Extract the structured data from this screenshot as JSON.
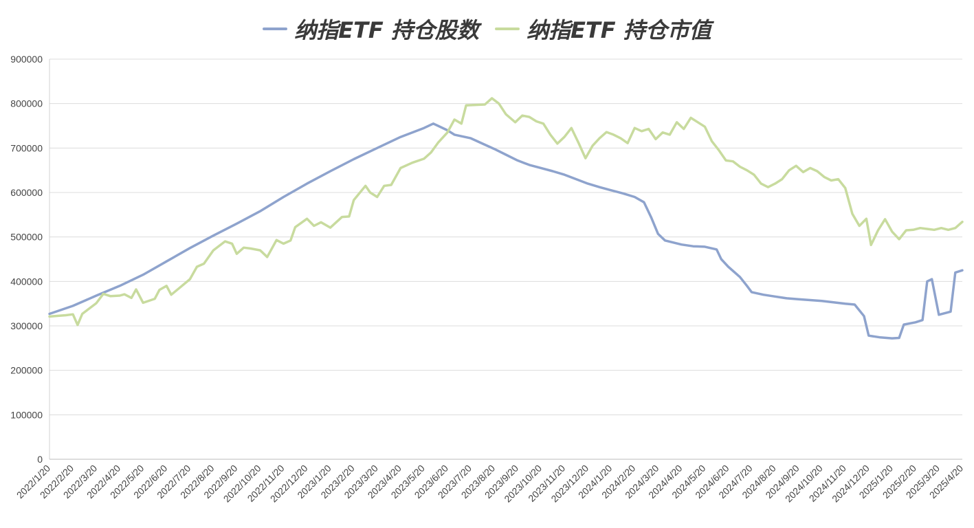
{
  "chart_data": {
    "type": "line",
    "title": "",
    "xlabel": "",
    "ylabel": "",
    "ylim": [
      0,
      900000
    ],
    "y_ticks": [
      "0",
      "100000",
      "200000",
      "300000",
      "400000",
      "500000",
      "600000",
      "700000",
      "800000",
      "900000"
    ],
    "x_tick_labels": [
      "2022/1/20",
      "2022/2/20",
      "2022/3/20",
      "2022/4/20",
      "2022/5/20",
      "2022/6/20",
      "2022/7/20",
      "2022/8/20",
      "2022/9/20",
      "2022/10/20",
      "2022/11/20",
      "2022/12/20",
      "2023/1/20",
      "2023/2/20",
      "2023/3/20",
      "2023/4/20",
      "2023/5/20",
      "2023/6/20",
      "2023/7/20",
      "2023/8/20",
      "2023/9/20",
      "2023/10/20",
      "2023/11/20",
      "2023/12/20",
      "2024/1/20",
      "2024/2/20",
      "2024/3/20",
      "2024/4/20",
      "2024/5/20",
      "2024/6/20",
      "2024/7/20",
      "2024/8/20",
      "2024/9/20",
      "2024/10/20",
      "2024/11/20",
      "2024/12/20",
      "2025/1/20",
      "2025/2/20",
      "2025/3/20",
      "2025/4/20"
    ],
    "grid": true,
    "legend_position": "top",
    "series": [
      {
        "name": "纳指ETF 持仓股数",
        "color": "#8EA3CD",
        "points": [
          [
            0,
            327000
          ],
          [
            1,
            345000
          ],
          [
            2,
            368000
          ],
          [
            3,
            390000
          ],
          [
            4,
            415000
          ],
          [
            5,
            445000
          ],
          [
            6,
            475000
          ],
          [
            7,
            503000
          ],
          [
            8,
            530000
          ],
          [
            9,
            558000
          ],
          [
            10,
            590000
          ],
          [
            11,
            620000
          ],
          [
            12,
            648000
          ],
          [
            13,
            675000
          ],
          [
            14,
            700000
          ],
          [
            15,
            725000
          ],
          [
            16,
            745000
          ],
          [
            16.4,
            755000
          ],
          [
            17,
            740000
          ],
          [
            17.3,
            730000
          ],
          [
            18,
            722000
          ],
          [
            18.5,
            710000
          ],
          [
            19,
            698000
          ],
          [
            19.5,
            685000
          ],
          [
            20,
            672000
          ],
          [
            20.5,
            662000
          ],
          [
            21,
            655000
          ],
          [
            21.5,
            648000
          ],
          [
            22,
            640000
          ],
          [
            22.5,
            630000
          ],
          [
            23,
            620000
          ],
          [
            23.5,
            612000
          ],
          [
            24,
            605000
          ],
          [
            24.5,
            598000
          ],
          [
            25,
            590000
          ],
          [
            25.4,
            578000
          ],
          [
            25.7,
            545000
          ],
          [
            26,
            507000
          ],
          [
            26.3,
            492000
          ],
          [
            27,
            483000
          ],
          [
            27.5,
            479000
          ],
          [
            28,
            478000
          ],
          [
            28.5,
            472000
          ],
          [
            28.7,
            450000
          ],
          [
            29,
            433000
          ],
          [
            29.5,
            410000
          ],
          [
            29.8,
            390000
          ],
          [
            30,
            376000
          ],
          [
            30.5,
            370000
          ],
          [
            31,
            366000
          ],
          [
            31.5,
            362000
          ],
          [
            32,
            360000
          ],
          [
            32.5,
            358000
          ],
          [
            33,
            356000
          ],
          [
            33.5,
            353000
          ],
          [
            34,
            350000
          ],
          [
            34.4,
            348000
          ],
          [
            34.8,
            322000
          ],
          [
            35,
            278000
          ],
          [
            35.5,
            274000
          ],
          [
            36,
            272000
          ],
          [
            36.3,
            273000
          ],
          [
            36.5,
            303000
          ],
          [
            37,
            308000
          ],
          [
            37.3,
            313000
          ],
          [
            37.5,
            400000
          ],
          [
            37.7,
            405000
          ],
          [
            38,
            325000
          ],
          [
            38.5,
            332000
          ],
          [
            38.7,
            420000
          ],
          [
            39,
            425000
          ]
        ]
      },
      {
        "name": "纳指ETF 持仓市值",
        "color": "#C8DB9E",
        "points": [
          [
            0,
            321000
          ],
          [
            0.7,
            324000
          ],
          [
            1,
            326000
          ],
          [
            1.2,
            302000
          ],
          [
            1.4,
            327000
          ],
          [
            2,
            351000
          ],
          [
            2.3,
            372000
          ],
          [
            2.6,
            367000
          ],
          [
            3,
            368000
          ],
          [
            3.2,
            371000
          ],
          [
            3.5,
            363000
          ],
          [
            3.7,
            382000
          ],
          [
            4,
            352000
          ],
          [
            4.5,
            361000
          ],
          [
            4.7,
            381000
          ],
          [
            5,
            390000
          ],
          [
            5.2,
            370000
          ],
          [
            5.5,
            383000
          ],
          [
            6,
            405000
          ],
          [
            6.3,
            433000
          ],
          [
            6.6,
            440000
          ],
          [
            7,
            470000
          ],
          [
            7.5,
            490000
          ],
          [
            7.8,
            485000
          ],
          [
            8,
            462000
          ],
          [
            8.3,
            476000
          ],
          [
            8.6,
            474000
          ],
          [
            9,
            470000
          ],
          [
            9.3,
            455000
          ],
          [
            9.7,
            493000
          ],
          [
            10,
            485000
          ],
          [
            10.3,
            492000
          ],
          [
            10.5,
            522000
          ],
          [
            11,
            541000
          ],
          [
            11.3,
            525000
          ],
          [
            11.6,
            533000
          ],
          [
            12,
            521000
          ],
          [
            12.5,
            545000
          ],
          [
            12.8,
            546000
          ],
          [
            13,
            583000
          ],
          [
            13.5,
            615000
          ],
          [
            13.7,
            600000
          ],
          [
            14,
            590000
          ],
          [
            14.3,
            615000
          ],
          [
            14.6,
            617000
          ],
          [
            15,
            655000
          ],
          [
            15.5,
            667000
          ],
          [
            16,
            676000
          ],
          [
            16.3,
            690000
          ],
          [
            16.6,
            712000
          ],
          [
            17,
            735000
          ],
          [
            17.3,
            764000
          ],
          [
            17.6,
            755000
          ],
          [
            17.8,
            796000
          ],
          [
            18.2,
            797000
          ],
          [
            18.6,
            798000
          ],
          [
            18.9,
            812000
          ],
          [
            19.2,
            800000
          ],
          [
            19.5,
            776000
          ],
          [
            19.9,
            758000
          ],
          [
            20.2,
            773000
          ],
          [
            20.5,
            770000
          ],
          [
            20.8,
            760000
          ],
          [
            21.1,
            755000
          ],
          [
            21.4,
            730000
          ],
          [
            21.7,
            710000
          ],
          [
            22,
            725000
          ],
          [
            22.3,
            745000
          ],
          [
            22.6,
            712000
          ],
          [
            22.9,
            677000
          ],
          [
            23.2,
            705000
          ],
          [
            23.5,
            722000
          ],
          [
            23.8,
            736000
          ],
          [
            24.1,
            730000
          ],
          [
            24.4,
            722000
          ],
          [
            24.7,
            711000
          ],
          [
            25,
            745000
          ],
          [
            25.3,
            738000
          ],
          [
            25.6,
            743000
          ],
          [
            25.9,
            720000
          ],
          [
            26.2,
            735000
          ],
          [
            26.5,
            730000
          ],
          [
            26.8,
            758000
          ],
          [
            27.1,
            743000
          ],
          [
            27.4,
            768000
          ],
          [
            27.7,
            758000
          ],
          [
            28,
            748000
          ],
          [
            28.3,
            715000
          ],
          [
            28.6,
            695000
          ],
          [
            28.9,
            672000
          ],
          [
            29.2,
            670000
          ],
          [
            29.5,
            658000
          ],
          [
            29.8,
            650000
          ],
          [
            30.1,
            640000
          ],
          [
            30.4,
            620000
          ],
          [
            30.7,
            612000
          ],
          [
            31,
            620000
          ],
          [
            31.3,
            630000
          ],
          [
            31.6,
            650000
          ],
          [
            31.9,
            660000
          ],
          [
            32.2,
            646000
          ],
          [
            32.5,
            655000
          ],
          [
            32.8,
            648000
          ],
          [
            33.1,
            635000
          ],
          [
            33.4,
            627000
          ],
          [
            33.7,
            630000
          ],
          [
            34,
            610000
          ],
          [
            34.3,
            552000
          ],
          [
            34.6,
            525000
          ],
          [
            34.9,
            541000
          ],
          [
            35.1,
            482000
          ],
          [
            35.4,
            515000
          ],
          [
            35.7,
            540000
          ],
          [
            36,
            512000
          ],
          [
            36.3,
            495000
          ],
          [
            36.6,
            515000
          ],
          [
            36.9,
            516000
          ],
          [
            37.2,
            520000
          ],
          [
            37.5,
            518000
          ],
          [
            37.8,
            516000
          ],
          [
            38.1,
            520000
          ],
          [
            38.4,
            516000
          ],
          [
            38.7,
            520000
          ],
          [
            39,
            534000
          ]
        ]
      }
    ]
  }
}
